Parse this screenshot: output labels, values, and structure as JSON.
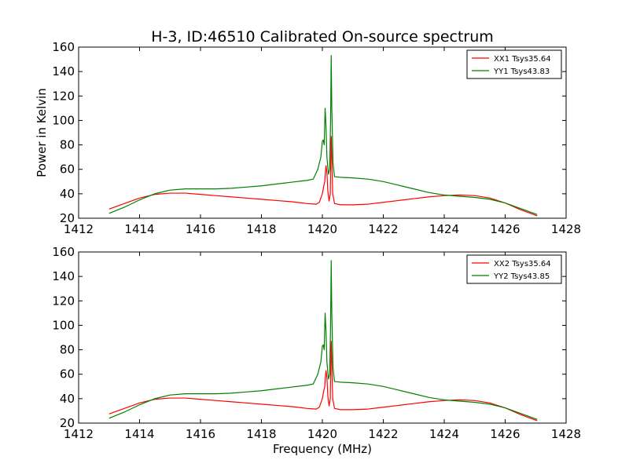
{
  "title": "H-3, ID:46510 Calibrated On-source spectrum",
  "chart_data": [
    {
      "type": "line",
      "ylabel": "Power in Kelvin",
      "xlabel": "",
      "xlim": [
        1412,
        1428
      ],
      "ylim": [
        20,
        160
      ],
      "xticks": [
        1412,
        1414,
        1416,
        1418,
        1420,
        1422,
        1424,
        1426,
        1428
      ],
      "yticks": [
        20,
        40,
        60,
        80,
        100,
        120,
        140,
        160
      ],
      "legend_position": "top-right",
      "series": [
        {
          "name": "XX1 Tsys35.64",
          "color": "#ff0000",
          "points": [
            [
              1413.0,
              27.5
            ],
            [
              1413.5,
              32
            ],
            [
              1414.0,
              36.5
            ],
            [
              1414.5,
              39.5
            ],
            [
              1415.0,
              40.5
            ],
            [
              1415.5,
              40.5
            ],
            [
              1416.0,
              39.5
            ],
            [
              1416.5,
              38.5
            ],
            [
              1417.0,
              37.5
            ],
            [
              1417.5,
              36.5
            ],
            [
              1418.0,
              35.5
            ],
            [
              1418.5,
              34.5
            ],
            [
              1419.0,
              33.5
            ],
            [
              1419.5,
              32
            ],
            [
              1419.8,
              31.5
            ],
            [
              1419.9,
              33
            ],
            [
              1420.0,
              40
            ],
            [
              1420.05,
              47
            ],
            [
              1420.08,
              50
            ],
            [
              1420.1,
              58
            ],
            [
              1420.12,
              63
            ],
            [
              1420.15,
              57
            ],
            [
              1420.18,
              42
            ],
            [
              1420.22,
              34
            ],
            [
              1420.26,
              40
            ],
            [
              1420.29,
              87
            ],
            [
              1420.31,
              70
            ],
            [
              1420.34,
              40
            ],
            [
              1420.4,
              32
            ],
            [
              1420.6,
              31
            ],
            [
              1421.0,
              31
            ],
            [
              1421.5,
              31.5
            ],
            [
              1422.0,
              33
            ],
            [
              1422.5,
              34.5
            ],
            [
              1423.0,
              36
            ],
            [
              1423.5,
              37.5
            ],
            [
              1424.0,
              38.5
            ],
            [
              1424.5,
              39
            ],
            [
              1425.0,
              38.5
            ],
            [
              1425.5,
              36.5
            ],
            [
              1426.0,
              32.5
            ],
            [
              1426.5,
              27
            ],
            [
              1427.05,
              22
            ]
          ]
        },
        {
          "name": "YY1 Tsys43.83",
          "color": "#008000",
          "points": [
            [
              1413.0,
              24
            ],
            [
              1413.5,
              29
            ],
            [
              1414.0,
              35
            ],
            [
              1414.5,
              40
            ],
            [
              1415.0,
              43
            ],
            [
              1415.5,
              44
            ],
            [
              1416.0,
              44
            ],
            [
              1416.5,
              44
            ],
            [
              1417.0,
              44.5
            ],
            [
              1417.5,
              45.5
            ],
            [
              1418.0,
              46.5
            ],
            [
              1418.5,
              48
            ],
            [
              1419.0,
              49.5
            ],
            [
              1419.5,
              51
            ],
            [
              1419.7,
              52
            ],
            [
              1419.85,
              60
            ],
            [
              1419.95,
              70
            ],
            [
              1420.0,
              83
            ],
            [
              1420.03,
              84
            ],
            [
              1420.06,
              80
            ],
            [
              1420.09,
              110
            ],
            [
              1420.12,
              95
            ],
            [
              1420.15,
              70
            ],
            [
              1420.2,
              56
            ],
            [
              1420.24,
              60
            ],
            [
              1420.27,
              100
            ],
            [
              1420.29,
              153
            ],
            [
              1420.31,
              110
            ],
            [
              1420.35,
              65
            ],
            [
              1420.4,
              54
            ],
            [
              1420.6,
              53.5
            ],
            [
              1421.0,
              53
            ],
            [
              1421.5,
              52
            ],
            [
              1422.0,
              50
            ],
            [
              1422.5,
              47
            ],
            [
              1423.0,
              44
            ],
            [
              1423.5,
              41
            ],
            [
              1424.0,
              39
            ],
            [
              1424.5,
              38
            ],
            [
              1425.0,
              37
            ],
            [
              1425.5,
              35.5
            ],
            [
              1426.0,
              32.5
            ],
            [
              1426.5,
              28
            ],
            [
              1427.05,
              23
            ]
          ]
        }
      ]
    },
    {
      "type": "line",
      "ylabel": "",
      "xlabel": "Frequency (MHz)",
      "xlim": [
        1412,
        1428
      ],
      "ylim": [
        20,
        160
      ],
      "xticks": [
        1412,
        1414,
        1416,
        1418,
        1420,
        1422,
        1424,
        1426,
        1428
      ],
      "yticks": [
        20,
        40,
        60,
        80,
        100,
        120,
        140,
        160
      ],
      "legend_position": "top-right",
      "series": [
        {
          "name": "XX2 Tsys35.64",
          "color": "#ff0000",
          "points": [
            [
              1413.0,
              27.5
            ],
            [
              1413.5,
              32
            ],
            [
              1414.0,
              36.5
            ],
            [
              1414.5,
              39.5
            ],
            [
              1415.0,
              40.5
            ],
            [
              1415.5,
              40.5
            ],
            [
              1416.0,
              39.5
            ],
            [
              1416.5,
              38.5
            ],
            [
              1417.0,
              37.5
            ],
            [
              1417.5,
              36.5
            ],
            [
              1418.0,
              35.5
            ],
            [
              1418.5,
              34.5
            ],
            [
              1419.0,
              33.5
            ],
            [
              1419.5,
              32
            ],
            [
              1419.8,
              31.5
            ],
            [
              1419.9,
              33
            ],
            [
              1420.0,
              40
            ],
            [
              1420.05,
              47
            ],
            [
              1420.08,
              50
            ],
            [
              1420.1,
              58
            ],
            [
              1420.12,
              63
            ],
            [
              1420.15,
              57
            ],
            [
              1420.18,
              42
            ],
            [
              1420.22,
              34
            ],
            [
              1420.26,
              40
            ],
            [
              1420.29,
              87
            ],
            [
              1420.31,
              70
            ],
            [
              1420.34,
              40
            ],
            [
              1420.4,
              32
            ],
            [
              1420.6,
              31
            ],
            [
              1421.0,
              31
            ],
            [
              1421.5,
              31.5
            ],
            [
              1422.0,
              33
            ],
            [
              1422.5,
              34.5
            ],
            [
              1423.0,
              36
            ],
            [
              1423.5,
              37.5
            ],
            [
              1424.0,
              38.5
            ],
            [
              1424.5,
              39
            ],
            [
              1425.0,
              38.5
            ],
            [
              1425.5,
              36.5
            ],
            [
              1426.0,
              32.5
            ],
            [
              1426.5,
              27
            ],
            [
              1427.05,
              22
            ]
          ]
        },
        {
          "name": "YY2 Tsys43.85",
          "color": "#008000",
          "points": [
            [
              1413.0,
              24
            ],
            [
              1413.5,
              29
            ],
            [
              1414.0,
              35
            ],
            [
              1414.5,
              40
            ],
            [
              1415.0,
              43
            ],
            [
              1415.5,
              44
            ],
            [
              1416.0,
              44
            ],
            [
              1416.5,
              44
            ],
            [
              1417.0,
              44.5
            ],
            [
              1417.5,
              45.5
            ],
            [
              1418.0,
              46.5
            ],
            [
              1418.5,
              48
            ],
            [
              1419.0,
              49.5
            ],
            [
              1419.5,
              51
            ],
            [
              1419.7,
              52
            ],
            [
              1419.85,
              60
            ],
            [
              1419.95,
              70
            ],
            [
              1420.0,
              83
            ],
            [
              1420.03,
              84
            ],
            [
              1420.06,
              80
            ],
            [
              1420.09,
              110
            ],
            [
              1420.12,
              95
            ],
            [
              1420.15,
              70
            ],
            [
              1420.2,
              56
            ],
            [
              1420.24,
              60
            ],
            [
              1420.27,
              100
            ],
            [
              1420.29,
              153
            ],
            [
              1420.31,
              110
            ],
            [
              1420.35,
              65
            ],
            [
              1420.4,
              54
            ],
            [
              1420.6,
              53.5
            ],
            [
              1421.0,
              53
            ],
            [
              1421.5,
              52
            ],
            [
              1422.0,
              50
            ],
            [
              1422.5,
              47
            ],
            [
              1423.0,
              44
            ],
            [
              1423.5,
              41
            ],
            [
              1424.0,
              39
            ],
            [
              1424.5,
              38
            ],
            [
              1425.0,
              37
            ],
            [
              1425.5,
              35.5
            ],
            [
              1426.0,
              32.5
            ],
            [
              1426.5,
              28
            ],
            [
              1427.05,
              23
            ]
          ]
        }
      ]
    }
  ]
}
